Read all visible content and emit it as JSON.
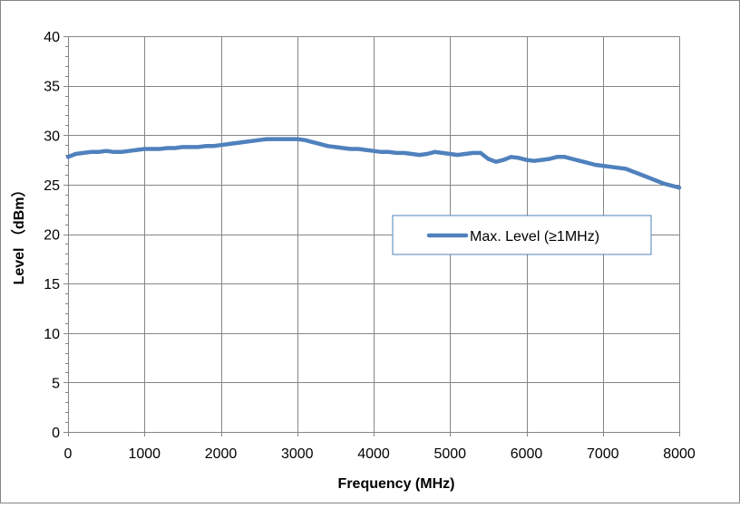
{
  "chart_data": {
    "type": "line",
    "title": "",
    "xlabel": "Frequency (MHz)",
    "ylabel": "Level （dBm）",
    "xlim": [
      0,
      8000
    ],
    "ylim": [
      0,
      40
    ],
    "xticks": [
      0,
      1000,
      2000,
      3000,
      4000,
      5000,
      6000,
      7000,
      8000
    ],
    "yticks": [
      0,
      5,
      10,
      15,
      20,
      25,
      30,
      35,
      40
    ],
    "grid": true,
    "legend_position": "center-right",
    "series": [
      {
        "name": "Max. Level (≥1MHz)",
        "color": "#4f81bd",
        "x": [
          0,
          100,
          200,
          300,
          400,
          500,
          600,
          700,
          800,
          900,
          1000,
          1100,
          1200,
          1300,
          1400,
          1500,
          1600,
          1700,
          1800,
          1900,
          2000,
          2100,
          2200,
          2300,
          2400,
          2500,
          2600,
          2700,
          2800,
          2900,
          3000,
          3100,
          3200,
          3300,
          3400,
          3500,
          3600,
          3700,
          3800,
          3900,
          4000,
          4100,
          4200,
          4300,
          4400,
          4500,
          4600,
          4700,
          4800,
          4900,
          5000,
          5100,
          5200,
          5300,
          5400,
          5500,
          5600,
          5700,
          5800,
          5900,
          6000,
          6100,
          6200,
          6300,
          6400,
          6500,
          6600,
          6700,
          6800,
          6900,
          7000,
          7100,
          7200,
          7300,
          7400,
          7500,
          7600,
          7700,
          7800,
          7900,
          8000
        ],
        "y": [
          27.8,
          28.1,
          28.2,
          28.3,
          28.3,
          28.4,
          28.3,
          28.3,
          28.4,
          28.5,
          28.6,
          28.6,
          28.6,
          28.7,
          28.7,
          28.8,
          28.8,
          28.8,
          28.9,
          28.9,
          29.0,
          29.1,
          29.2,
          29.3,
          29.4,
          29.5,
          29.6,
          29.6,
          29.6,
          29.6,
          29.6,
          29.5,
          29.3,
          29.1,
          28.9,
          28.8,
          28.7,
          28.6,
          28.6,
          28.5,
          28.4,
          28.3,
          28.3,
          28.2,
          28.2,
          28.1,
          28.0,
          28.1,
          28.3,
          28.2,
          28.1,
          28.0,
          28.1,
          28.2,
          28.2,
          27.6,
          27.3,
          27.5,
          27.8,
          27.7,
          27.5,
          27.4,
          27.5,
          27.6,
          27.8,
          27.8,
          27.6,
          27.4,
          27.2,
          27.0,
          26.9,
          26.8,
          26.7,
          26.6,
          26.3,
          26.0,
          25.7,
          25.4,
          25.1,
          24.9,
          24.7
        ]
      }
    ]
  }
}
